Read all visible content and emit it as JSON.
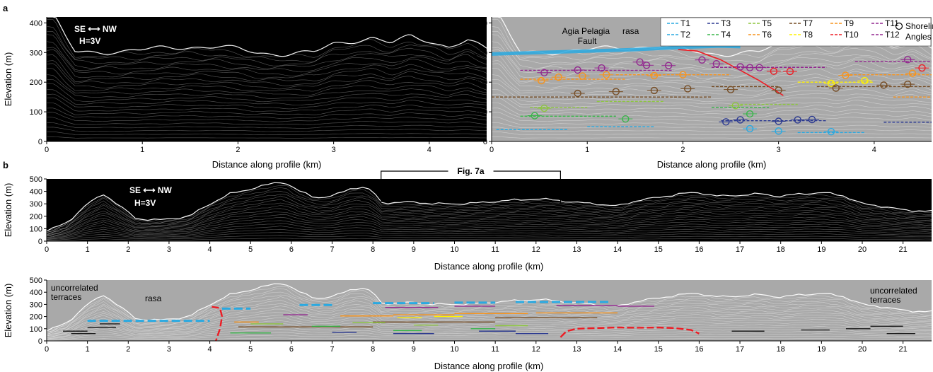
{
  "panel_labels": [
    "a",
    "b"
  ],
  "chart_data": [
    {
      "id": "a-left",
      "type": "area",
      "title": "",
      "xlabel": "Distance along profile (km)",
      "ylabel": "Elevation (m)",
      "xlim": [
        0,
        4.6
      ],
      "ylim": [
        0,
        420
      ],
      "xticks": [
        0,
        1,
        2,
        3,
        4
      ],
      "yticks": [
        0,
        100,
        200,
        300,
        400
      ],
      "background": "#000000",
      "annotations": {
        "direction": "SE ⟷ NW",
        "exaggeration": "H=3V"
      },
      "profile_envelope": {
        "x": [
          0,
          0.08,
          0.2,
          0.3,
          0.5,
          0.8,
          1.0,
          1.2,
          1.5,
          1.8,
          2.0,
          2.2,
          2.5,
          2.8,
          3.0,
          3.2,
          3.4,
          3.6,
          3.8,
          4.0,
          4.2,
          4.4,
          4.6
        ],
        "y": [
          420,
          420,
          350,
          300,
          302,
          305,
          308,
          315,
          320,
          318,
          312,
          300,
          295,
          300,
          330,
          340,
          350,
          330,
          355,
          340,
          320,
          340,
          310
        ]
      }
    },
    {
      "id": "a-right",
      "type": "scatter",
      "title": "",
      "xlabel": "Distance along profile (km)",
      "ylabel": "",
      "xlim": [
        0,
        4.6
      ],
      "ylim": [
        0,
        420
      ],
      "xticks": [
        0,
        1,
        2,
        3,
        4
      ],
      "yticks": [
        0,
        100,
        200,
        300,
        400
      ],
      "background": "#a9a9a9",
      "annotations": {
        "fault_label": "Agia Pelagia\nFault",
        "rasa_label": "rasa"
      },
      "legend": {
        "position": "top-right",
        "entries": [
          {
            "name": "T1",
            "color": "#29a9e1"
          },
          {
            "name": "T2",
            "color": "#29a9e1"
          },
          {
            "name": "T3",
            "color": "#2b3990"
          },
          {
            "name": "T4",
            "color": "#39b54a"
          },
          {
            "name": "T5",
            "color": "#8dc63f"
          },
          {
            "name": "T6",
            "color": "#f7941d"
          },
          {
            "name": "T7",
            "color": "#754c24"
          },
          {
            "name": "T8",
            "color": "#fff200"
          },
          {
            "name": "T9",
            "color": "#f7941d"
          },
          {
            "name": "T10",
            "color": "#ed1c24"
          },
          {
            "name": "T11",
            "color": "#92278f"
          },
          {
            "name": "T12",
            "color": "#92278f"
          }
        ],
        "marker_label": "Shoreline\nAngles"
      },
      "terrace_lines": [
        {
          "name": "T1",
          "color": "#29a9e1",
          "segments": [
            [
              0.05,
              0.8,
              40
            ],
            [
              1.0,
              1.7,
              50
            ],
            [
              3.2,
              3.9,
              30
            ]
          ]
        },
        {
          "name": "T3",
          "color": "#2b3990",
          "segments": [
            [
              2.4,
              3.5,
              70
            ],
            [
              4.1,
              4.6,
              65
            ]
          ]
        },
        {
          "name": "T4",
          "color": "#39b54a",
          "segments": [
            [
              0.3,
              1.3,
              85
            ],
            [
              2.3,
              2.9,
              115
            ]
          ]
        },
        {
          "name": "T5",
          "color": "#8dc63f",
          "segments": [
            [
              0.4,
              1.0,
              115
            ],
            [
              1.1,
              1.8,
              135
            ],
            [
              2.6,
              3.2,
              125
            ]
          ]
        },
        {
          "name": "T6",
          "color": "#f7941d",
          "segments": [
            [
              4.2,
              4.6,
              150
            ]
          ]
        },
        {
          "name": "T7",
          "color": "#754c24",
          "segments": [
            [
              0.0,
              2.3,
              150
            ],
            [
              2.3,
              3.0,
              185
            ],
            [
              3.4,
              4.6,
              185
            ]
          ]
        },
        {
          "name": "T8",
          "color": "#fff200",
          "segments": [
            [
              3.2,
              4.0,
              200
            ]
          ]
        },
        {
          "name": "T9",
          "color": "#f7941d",
          "segments": [
            [
              0.3,
              1.4,
              210
            ],
            [
              1.3,
              2.5,
              225
            ],
            [
              3.7,
              4.6,
              225
            ]
          ]
        },
        {
          "name": "T11",
          "color": "#92278f",
          "segments": [
            [
              0.3,
              1.9,
              240
            ],
            [
              2.3,
              3.5,
              250
            ]
          ]
        },
        {
          "name": "T12",
          "color": "#92278f",
          "segments": [
            [
              3.8,
              4.6,
              270
            ]
          ]
        }
      ],
      "shoreline_angles": [
        {
          "x": 0.55,
          "y": 232,
          "color": "#92278f"
        },
        {
          "x": 0.7,
          "y": 217,
          "color": "#f7941d"
        },
        {
          "x": 0.52,
          "y": 205,
          "color": "#f7941d"
        },
        {
          "x": 0.9,
          "y": 241,
          "color": "#92278f"
        },
        {
          "x": 0.95,
          "y": 221,
          "color": "#f7941d"
        },
        {
          "x": 1.15,
          "y": 248,
          "color": "#92278f"
        },
        {
          "x": 1.55,
          "y": 268,
          "color": "#92278f"
        },
        {
          "x": 1.62,
          "y": 257,
          "color": "#92278f"
        },
        {
          "x": 1.85,
          "y": 256,
          "color": "#92278f"
        },
        {
          "x": 2.2,
          "y": 275,
          "color": "#92278f"
        },
        {
          "x": 2.35,
          "y": 262,
          "color": "#92278f"
        },
        {
          "x": 2.6,
          "y": 252,
          "color": "#92278f"
        },
        {
          "x": 2.7,
          "y": 249,
          "color": "#92278f"
        },
        {
          "x": 2.8,
          "y": 249,
          "color": "#92278f"
        },
        {
          "x": 2.95,
          "y": 237,
          "color": "#ed1c24"
        },
        {
          "x": 3.12,
          "y": 236,
          "color": "#ed1c24"
        },
        {
          "x": 4.35,
          "y": 276,
          "color": "#92278f"
        },
        {
          "x": 4.5,
          "y": 248,
          "color": "#ed1c24"
        },
        {
          "x": 1.2,
          "y": 225,
          "color": "#f7941d"
        },
        {
          "x": 1.7,
          "y": 222,
          "color": "#f7941d"
        },
        {
          "x": 2.0,
          "y": 225,
          "color": "#f7941d"
        },
        {
          "x": 3.7,
          "y": 223,
          "color": "#f7941d"
        },
        {
          "x": 4.4,
          "y": 230,
          "color": "#f7941d"
        },
        {
          "x": 3.55,
          "y": 196,
          "color": "#fff200"
        },
        {
          "x": 3.9,
          "y": 205,
          "color": "#fff200"
        },
        {
          "x": 0.9,
          "y": 162,
          "color": "#754c24"
        },
        {
          "x": 1.3,
          "y": 168,
          "color": "#754c24"
        },
        {
          "x": 1.7,
          "y": 172,
          "color": "#754c24"
        },
        {
          "x": 2.05,
          "y": 178,
          "color": "#754c24"
        },
        {
          "x": 2.5,
          "y": 175,
          "color": "#754c24"
        },
        {
          "x": 3.0,
          "y": 173,
          "color": "#754c24"
        },
        {
          "x": 3.6,
          "y": 180,
          "color": "#754c24"
        },
        {
          "x": 4.1,
          "y": 190,
          "color": "#754c24"
        },
        {
          "x": 4.35,
          "y": 193,
          "color": "#754c24"
        },
        {
          "x": 0.55,
          "y": 112,
          "color": "#8dc63f"
        },
        {
          "x": 0.45,
          "y": 87,
          "color": "#39b54a"
        },
        {
          "x": 1.4,
          "y": 76,
          "color": "#39b54a"
        },
        {
          "x": 2.55,
          "y": 121,
          "color": "#8dc63f"
        },
        {
          "x": 2.7,
          "y": 93,
          "color": "#39b54a"
        },
        {
          "x": 2.45,
          "y": 66,
          "color": "#2b3990"
        },
        {
          "x": 2.6,
          "y": 73,
          "color": "#2b3990"
        },
        {
          "x": 3.0,
          "y": 68,
          "color": "#2b3990"
        },
        {
          "x": 3.2,
          "y": 73,
          "color": "#2b3990"
        },
        {
          "x": 3.35,
          "y": 74,
          "color": "#2b3990"
        },
        {
          "x": 2.7,
          "y": 43,
          "color": "#29a9e1"
        },
        {
          "x": 3.0,
          "y": 35,
          "color": "#29a9e1"
        },
        {
          "x": 3.55,
          "y": 33,
          "color": "#29a9e1"
        }
      ],
      "fault_line": {
        "color": "#ed1c24",
        "x": [
          1.95,
          2.15,
          2.4,
          2.6,
          2.8,
          2.95,
          3.05
        ],
        "y": [
          310,
          305,
          275,
          240,
          205,
          175,
          155
        ]
      },
      "rasa": {
        "color": "#29a9e1",
        "x": [
          0.0,
          0.5,
          1.0,
          1.5,
          2.0,
          2.4,
          2.6
        ],
        "y": [
          295,
          300,
          305,
          310,
          318,
          322,
          320
        ]
      }
    },
    {
      "id": "b-top",
      "type": "area",
      "title": "",
      "xlabel": "Distance along profile (km)",
      "ylabel": "Elevation (m)",
      "xlim": [
        0,
        21.7
      ],
      "ylim": [
        0,
        500
      ],
      "xticks": [
        0,
        1,
        2,
        3,
        4,
        5,
        6,
        7,
        8,
        9,
        10,
        11,
        12,
        13,
        14,
        15,
        16,
        17,
        18,
        19,
        20,
        21
      ],
      "yticks": [
        0,
        100,
        200,
        300,
        400,
        500
      ],
      "background": "#000000",
      "annotations": {
        "direction": "SE ⟷ NW",
        "exaggeration": "H=3V",
        "inset_ref": "Fig. 7a",
        "inset_range_km": [
          8.2,
          12.6
        ]
      },
      "profile_envelope": {
        "x": [
          0,
          0.5,
          1.0,
          1.4,
          1.8,
          2.2,
          2.8,
          3.5,
          4.0,
          4.5,
          5.0,
          5.5,
          5.8,
          6.2,
          6.6,
          7.0,
          7.5,
          7.8,
          8.0,
          8.2,
          8.6,
          9.0,
          9.5,
          10.0,
          10.5,
          11.0,
          11.5,
          12.0,
          12.5,
          13.0,
          13.5,
          14.0,
          14.5,
          15.0,
          15.5,
          16.0,
          16.5,
          17.0,
          17.5,
          18.0,
          18.5,
          19.0,
          19.5,
          20.0,
          20.5,
          21.0,
          21.7
        ],
        "y": [
          80,
          150,
          300,
          380,
          280,
          180,
          170,
          200,
          300,
          380,
          420,
          460,
          480,
          400,
          350,
          360,
          430,
          430,
          400,
          310,
          310,
          315,
          300,
          300,
          305,
          320,
          330,
          340,
          330,
          310,
          300,
          280,
          330,
          350,
          380,
          390,
          360,
          370,
          380,
          360,
          380,
          390,
          370,
          300,
          280,
          250,
          240
        ]
      }
    },
    {
      "id": "b-bottom",
      "type": "scatter",
      "title": "",
      "xlabel": "Distance along profile (km)",
      "ylabel": "Elevation (m)",
      "xlim": [
        0,
        21.7
      ],
      "ylim": [
        0,
        500
      ],
      "xticks": [
        0,
        1,
        2,
        3,
        4,
        5,
        6,
        7,
        8,
        9,
        10,
        11,
        12,
        13,
        14,
        15,
        16,
        17,
        18,
        19,
        20,
        21
      ],
      "yticks": [
        0,
        100,
        200,
        300,
        400,
        500
      ],
      "background": "#a9a9a9",
      "annotations": {
        "uncorrelated_left": "uncorrelated\nterraces",
        "rasa": "rasa",
        "uncorrelated_right": "uncorrelated\nterraces"
      },
      "terrace_lines": [
        {
          "color": "#29a9e1",
          "dashed": true,
          "segments": [
            [
              1.0,
              4.0,
              165
            ],
            [
              4.3,
              5.0,
              265
            ],
            [
              6.2,
              7.0,
              295
            ],
            [
              8.0,
              9.5,
              310
            ],
            [
              10.0,
              11.0,
              315
            ],
            [
              11.5,
              13.8,
              320
            ]
          ]
        },
        {
          "color": "#92278f",
          "segments": [
            [
              5.8,
              6.4,
              215
            ],
            [
              8.3,
              9.6,
              275
            ],
            [
              10.0,
              11.0,
              285
            ],
            [
              12.5,
              14.0,
              290
            ],
            [
              14.0,
              14.9,
              285
            ]
          ]
        },
        {
          "color": "#f7941d",
          "segments": [
            [
              4.6,
              5.2,
              155
            ],
            [
              7.2,
              8.5,
              205
            ],
            [
              8.5,
              10.0,
              215
            ],
            [
              10.0,
              11.8,
              225
            ],
            [
              12.0,
              14.0,
              230
            ]
          ]
        },
        {
          "color": "#754c24",
          "segments": [
            [
              4.7,
              8.0,
              115
            ],
            [
              8.0,
              11.0,
              155
            ],
            [
              11.0,
              13.5,
              190
            ]
          ]
        },
        {
          "color": "#39b54a",
          "segments": [
            [
              4.5,
              5.5,
              65
            ],
            [
              6.5,
              7.2,
              120
            ],
            [
              8.5,
              9.2,
              85
            ],
            [
              10.4,
              11.0,
              100
            ]
          ]
        },
        {
          "color": "#8dc63f",
          "segments": [
            [
              5.0,
              5.8,
              140
            ],
            [
              7.5,
              8.3,
              150
            ],
            [
              9.0,
              9.6,
              130
            ],
            [
              11.0,
              11.8,
              125
            ]
          ]
        },
        {
          "color": "#2b3990",
          "segments": [
            [
              7.0,
              7.6,
              70
            ],
            [
              8.5,
              9.5,
              60
            ],
            [
              10.6,
              11.5,
              80
            ],
            [
              11.5,
              12.3,
              60
            ]
          ]
        },
        {
          "color": "#fff200",
          "segments": [
            [
              8.6,
              9.2,
              190
            ],
            [
              9.5,
              10.2,
              200
            ]
          ]
        },
        {
          "color": "#1a1a1a",
          "segments": [
            [
              0.4,
              1.0,
              80
            ],
            [
              0.6,
              1.2,
              60
            ],
            [
              1.0,
              1.7,
              110
            ],
            [
              1.3,
              1.8,
              140
            ],
            [
              16.8,
              17.6,
              80
            ],
            [
              18.5,
              19.2,
              90
            ],
            [
              19.6,
              20.2,
              100
            ],
            [
              20.2,
              21.0,
              120
            ],
            [
              20.6,
              21.3,
              60
            ]
          ]
        }
      ],
      "faults": [
        {
          "color": "#ed1c24",
          "x": [
            4.05,
            4.25,
            4.3,
            4.25,
            4.15
          ],
          "y": [
            280,
            270,
            200,
            100,
            0
          ]
        },
        {
          "color": "#ed1c24",
          "x": [
            12.6,
            12.75,
            13.0,
            13.5,
            14.0,
            14.5,
            15.0,
            15.4,
            15.8,
            16.0
          ],
          "y": [
            30,
            80,
            100,
            105,
            110,
            108,
            110,
            105,
            90,
            60
          ]
        }
      ]
    }
  ]
}
